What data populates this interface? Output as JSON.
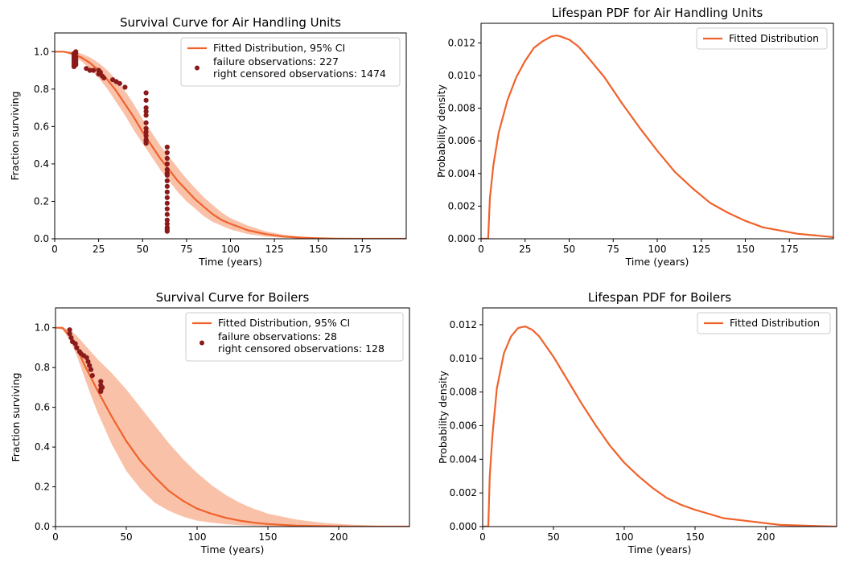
{
  "colors": {
    "line": "#f0622b",
    "band": "#f9b69a",
    "points": "#8b1a1a",
    "axis": "#000000"
  },
  "chart_data": [
    {
      "type": "line",
      "title": "Survival Curve for Air Handling Units",
      "xlabel": "Time (years)",
      "ylabel": "Fraction surviving",
      "xlim": [
        0,
        200
      ],
      "ylim": [
        0,
        1.1
      ],
      "xticks": [
        0,
        25,
        50,
        75,
        100,
        125,
        150,
        175
      ],
      "yticks": [
        "0.0",
        "0.2",
        "0.4",
        "0.6",
        "0.8",
        "1.0"
      ],
      "legend_position": "top-right",
      "legend": [
        {
          "kind": "line",
          "label": "Fitted Distribution, 95% CI"
        },
        {
          "kind": "points",
          "label": "failure observations: 227\nright censored observations: 1474"
        }
      ],
      "curve": {
        "x": [
          0,
          5,
          10,
          15,
          20,
          25,
          30,
          35,
          40,
          45,
          50,
          55,
          60,
          65,
          70,
          75,
          80,
          85,
          90,
          95,
          100,
          110,
          120,
          130,
          140,
          150,
          160,
          170,
          180,
          190,
          200
        ],
        "y": [
          1.0,
          1.0,
          0.99,
          0.97,
          0.94,
          0.9,
          0.85,
          0.79,
          0.72,
          0.65,
          0.57,
          0.5,
          0.43,
          0.37,
          0.31,
          0.26,
          0.21,
          0.17,
          0.13,
          0.1,
          0.08,
          0.045,
          0.025,
          0.012,
          0.006,
          0.003,
          0.001,
          0.0,
          0.0,
          0.0,
          0.0
        ],
        "lower": [
          1.0,
          1.0,
          0.98,
          0.95,
          0.91,
          0.86,
          0.8,
          0.73,
          0.66,
          0.58,
          0.51,
          0.44,
          0.37,
          0.31,
          0.25,
          0.2,
          0.16,
          0.12,
          0.09,
          0.07,
          0.05,
          0.025,
          0.012,
          0.005,
          0.002,
          0.001,
          0.0,
          0.0,
          0.0,
          0.0,
          0.0
        ],
        "upper": [
          1.0,
          1.0,
          1.0,
          0.99,
          0.97,
          0.94,
          0.9,
          0.85,
          0.79,
          0.72,
          0.64,
          0.57,
          0.5,
          0.44,
          0.38,
          0.32,
          0.27,
          0.22,
          0.18,
          0.14,
          0.11,
          0.07,
          0.04,
          0.022,
          0.012,
          0.006,
          0.003,
          0.001,
          0.0,
          0.0,
          0.0
        ]
      },
      "points": {
        "x": [
          11,
          11,
          11,
          11,
          11,
          11,
          11,
          11,
          12,
          12,
          12,
          12,
          12,
          12,
          12,
          18,
          20,
          22,
          25,
          25,
          26,
          27,
          28,
          33,
          35,
          37,
          40,
          52,
          52,
          52,
          52,
          52,
          52,
          52,
          52,
          52,
          52,
          52,
          52,
          64,
          64,
          64,
          64,
          64,
          64,
          64,
          64,
          64,
          64,
          64,
          64,
          64,
          64,
          64,
          64,
          64,
          64,
          64
        ],
        "y": [
          0.92,
          0.93,
          0.94,
          0.95,
          0.96,
          0.97,
          0.98,
          0.99,
          0.93,
          0.95,
          0.97,
          0.99,
          1.0,
          0.96,
          0.94,
          0.91,
          0.9,
          0.9,
          0.9,
          0.88,
          0.89,
          0.87,
          0.86,
          0.85,
          0.84,
          0.83,
          0.81,
          0.78,
          0.74,
          0.7,
          0.66,
          0.62,
          0.59,
          0.57,
          0.55,
          0.53,
          0.52,
          0.51,
          0.68,
          0.49,
          0.46,
          0.43,
          0.4,
          0.37,
          0.34,
          0.31,
          0.28,
          0.25,
          0.22,
          0.19,
          0.16,
          0.13,
          0.1,
          0.08,
          0.06,
          0.05,
          0.04,
          0.35
        ]
      }
    },
    {
      "type": "line",
      "title": "Lifespan PDF for Air Handling Units",
      "xlabel": "Time (years)",
      "ylabel": "Probability density",
      "xlim": [
        0,
        200
      ],
      "ylim": [
        0,
        0.0132
      ],
      "xticks": [
        0,
        25,
        50,
        75,
        100,
        125,
        150,
        175
      ],
      "yticks": [
        "0.000",
        "0.002",
        "0.004",
        "0.006",
        "0.008",
        "0.010",
        "0.012"
      ],
      "legend_position": "top-right",
      "legend": [
        {
          "kind": "line",
          "label": "Fitted Distribution"
        }
      ],
      "curve": {
        "x": [
          0,
          4,
          5,
          7,
          10,
          15,
          20,
          25,
          30,
          35,
          40,
          43,
          45,
          50,
          55,
          60,
          70,
          80,
          90,
          100,
          110,
          120,
          130,
          140,
          150,
          160,
          170,
          180,
          190,
          200
        ],
        "y": [
          0.0,
          0.0,
          0.0025,
          0.0045,
          0.0065,
          0.0085,
          0.0099,
          0.0109,
          0.0117,
          0.0121,
          0.0124,
          0.01245,
          0.0124,
          0.0122,
          0.0118,
          0.0112,
          0.0099,
          0.0083,
          0.0068,
          0.0054,
          0.0041,
          0.0031,
          0.0022,
          0.0016,
          0.0011,
          0.0007,
          0.0005,
          0.0003,
          0.0002,
          0.0001
        ]
      }
    },
    {
      "type": "line",
      "title": "Survival Curve for Boilers",
      "xlabel": "Time (years)",
      "ylabel": "Fraction surviving",
      "xlim": [
        0,
        250
      ],
      "ylim": [
        0,
        1.1
      ],
      "xticks": [
        0,
        50,
        100,
        150,
        200
      ],
      "yticks": [
        "0.0",
        "0.2",
        "0.4",
        "0.6",
        "0.8",
        "1.0"
      ],
      "legend_position": "top-right",
      "legend": [
        {
          "kind": "line",
          "label": "Fitted Distribution, 95% CI"
        },
        {
          "kind": "points",
          "label": "failure observations: 28\nright censored observations: 128"
        }
      ],
      "curve": {
        "x": [
          0,
          5,
          10,
          15,
          20,
          25,
          30,
          40,
          50,
          60,
          70,
          80,
          90,
          100,
          110,
          120,
          130,
          140,
          150,
          170,
          190,
          210,
          230,
          250
        ],
        "y": [
          1.0,
          1.0,
          0.96,
          0.9,
          0.82,
          0.75,
          0.68,
          0.55,
          0.43,
          0.33,
          0.25,
          0.18,
          0.13,
          0.09,
          0.065,
          0.045,
          0.03,
          0.02,
          0.013,
          0.005,
          0.002,
          0.0,
          0.0,
          0.0
        ],
        "lower": [
          1.0,
          0.99,
          0.94,
          0.86,
          0.76,
          0.66,
          0.57,
          0.41,
          0.28,
          0.19,
          0.12,
          0.08,
          0.05,
          0.03,
          0.02,
          0.012,
          0.007,
          0.004,
          0.002,
          0.0,
          0.0,
          0.0,
          0.0,
          0.0
        ],
        "upper": [
          1.0,
          1.0,
          0.99,
          0.96,
          0.92,
          0.88,
          0.84,
          0.77,
          0.69,
          0.6,
          0.51,
          0.42,
          0.34,
          0.27,
          0.21,
          0.16,
          0.12,
          0.09,
          0.065,
          0.035,
          0.018,
          0.009,
          0.004,
          0.002
        ]
      },
      "points": {
        "x": [
          10,
          10,
          11,
          12,
          14,
          15,
          17,
          18,
          20,
          22,
          23,
          24,
          25,
          26,
          32,
          32,
          32,
          32,
          33
        ],
        "y": [
          0.99,
          0.97,
          0.95,
          0.93,
          0.92,
          0.9,
          0.88,
          0.87,
          0.86,
          0.85,
          0.83,
          0.81,
          0.79,
          0.76,
          0.73,
          0.71,
          0.69,
          0.68,
          0.7
        ]
      }
    },
    {
      "type": "line",
      "title": "Lifespan PDF for Boilers",
      "xlabel": "Time (years)",
      "ylabel": "Probability density",
      "xlim": [
        0,
        250
      ],
      "ylim": [
        0,
        0.013
      ],
      "xticks": [
        0,
        50,
        100,
        150,
        200
      ],
      "yticks": [
        "0.000",
        "0.002",
        "0.004",
        "0.006",
        "0.008",
        "0.010",
        "0.012"
      ],
      "legend_position": "top-right",
      "legend": [
        {
          "kind": "line",
          "label": "Fitted Distribution"
        }
      ],
      "curve": {
        "x": [
          0,
          4,
          5,
          7,
          10,
          15,
          20,
          25,
          30,
          35,
          40,
          50,
          60,
          70,
          80,
          90,
          100,
          110,
          120,
          130,
          140,
          150,
          170,
          190,
          210,
          230,
          250
        ],
        "y": [
          0.0,
          0.0,
          0.003,
          0.0055,
          0.0082,
          0.0103,
          0.0113,
          0.0118,
          0.0119,
          0.0117,
          0.0113,
          0.0101,
          0.0087,
          0.0073,
          0.006,
          0.0048,
          0.0038,
          0.003,
          0.0023,
          0.0017,
          0.0013,
          0.001,
          0.0005,
          0.0003,
          0.0001,
          5e-05,
          0.0
        ]
      }
    }
  ]
}
